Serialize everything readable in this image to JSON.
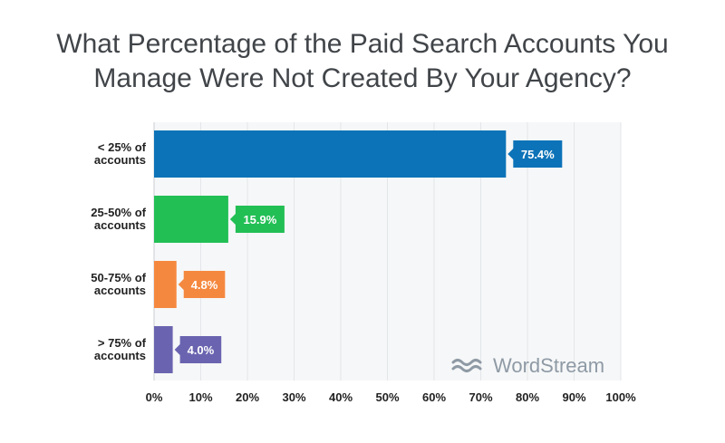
{
  "chart_data": {
    "type": "bar",
    "orientation": "horizontal",
    "title_lines": [
      "What Percentage of the Paid Search Accounts You",
      "Manage Were Not Created By Your Agency?"
    ],
    "categories": [
      [
        "< 25% of",
        "accounts"
      ],
      [
        "25-50% of",
        "accounts"
      ],
      [
        "50-75% of",
        "accounts"
      ],
      [
        "> 75% of",
        "accounts"
      ]
    ],
    "values": [
      75.4,
      15.9,
      4.8,
      4.0
    ],
    "value_labels": [
      "75.4%",
      "15.9%",
      "4.8%",
      "4.0%"
    ],
    "colors": [
      "#0c73b8",
      "#22bf55",
      "#f5883f",
      "#6a64b0"
    ],
    "xlim": [
      0,
      100
    ],
    "x_ticks": [
      0,
      10,
      20,
      30,
      40,
      50,
      60,
      70,
      80,
      90,
      100
    ],
    "x_tick_labels": [
      "0%",
      "10%",
      "20%",
      "30%",
      "40%",
      "50%",
      "60%",
      "70%",
      "80%",
      "90%",
      "100%"
    ],
    "grid": "vertical",
    "grid_color": "#e3e6e9",
    "plot_background": "#f6f7f8"
  },
  "brand": {
    "name": "WordStream",
    "icon": "wave-icon",
    "color": "#8e9aa5"
  }
}
